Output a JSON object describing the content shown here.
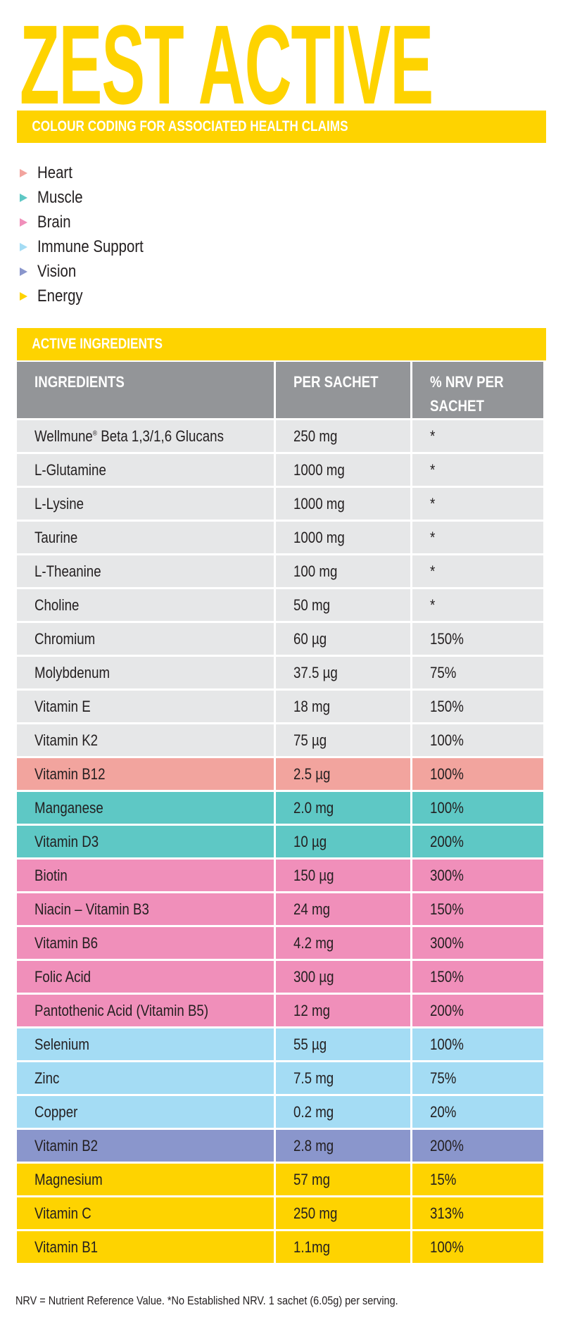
{
  "title": "ZEST ACTIVE",
  "colour_section": {
    "heading": "COLOUR CODING FOR ASSOCIATED HEALTH CLAIMS",
    "items": [
      {
        "label": "Heart",
        "color": "#f2a49e"
      },
      {
        "label": "Muscle",
        "color": "#5ec8c5"
      },
      {
        "label": "Brain",
        "color": "#f08fba"
      },
      {
        "label": "Immune Support",
        "color": "#a4dcf4"
      },
      {
        "label": "Vision",
        "color": "#8a96cc"
      },
      {
        "label": "Energy",
        "color": "#fed300"
      }
    ]
  },
  "ingredients_section": {
    "heading": "ACTIVE INGREDIENTS",
    "columns": [
      "INGREDIENTS",
      "PER SACHET",
      "% NRV PER SACHET"
    ],
    "rows": [
      {
        "name": "Wellmune",
        "sup": "®",
        "name_rest": " Beta 1,3/1,6 Glucans",
        "amount": "250 mg",
        "nrv": "*",
        "color": "#e6e7e8"
      },
      {
        "name": "L-Glutamine",
        "amount": "1000 mg",
        "nrv": "*",
        "color": "#e6e7e8"
      },
      {
        "name": "L-Lysine",
        "amount": "1000 mg",
        "nrv": "*",
        "color": "#e6e7e8"
      },
      {
        "name": "Taurine",
        "amount": "1000 mg",
        "nrv": "*",
        "color": "#e6e7e8"
      },
      {
        "name": "L-Theanine",
        "amount": "100 mg",
        "nrv": "*",
        "color": "#e6e7e8"
      },
      {
        "name": "Choline",
        "amount": "50 mg",
        "nrv": "*",
        "color": "#e6e7e8"
      },
      {
        "name": "Chromium",
        "amount": "60 µg",
        "nrv": "150%",
        "color": "#e6e7e8"
      },
      {
        "name": "Molybdenum",
        "amount": "37.5 µg",
        "nrv": "75%",
        "color": "#e6e7e8"
      },
      {
        "name": "Vitamin E",
        "amount": "18 mg",
        "nrv": "150%",
        "color": "#e6e7e8"
      },
      {
        "name": "Vitamin K2",
        "amount": "75 µg",
        "nrv": "100%",
        "color": "#e6e7e8"
      },
      {
        "name": "Vitamin B12",
        "amount": "2.5 µg",
        "nrv": "100%",
        "color": "#f2a49e"
      },
      {
        "name": "Manganese",
        "amount": "2.0 mg",
        "nrv": "100%",
        "color": "#5ec8c5"
      },
      {
        "name": "Vitamin D3",
        "amount": "10 µg",
        "nrv": "200%",
        "color": "#5ec8c5"
      },
      {
        "name": "Biotin",
        "amount": "150 µg",
        "nrv": "300%",
        "color": "#f08fba"
      },
      {
        "name": "Niacin – Vitamin B3",
        "amount": "24 mg",
        "nrv": "150%",
        "color": "#f08fba"
      },
      {
        "name": "Vitamin B6",
        "amount": "4.2 mg",
        "nrv": "300%",
        "color": "#f08fba"
      },
      {
        "name": "Folic Acid",
        "amount": "300 µg",
        "nrv": "150%",
        "color": "#f08fba"
      },
      {
        "name": "Pantothenic Acid (Vitamin B5)",
        "amount": "12 mg",
        "nrv": "200%",
        "color": "#f08fba"
      },
      {
        "name": "Selenium",
        "amount": "55 µg",
        "nrv": "100%",
        "color": "#a4dcf4"
      },
      {
        "name": "Zinc",
        "amount": "7.5 mg",
        "nrv": "75%",
        "color": "#a4dcf4"
      },
      {
        "name": "Copper",
        "amount": "0.2 mg",
        "nrv": "20%",
        "color": "#a4dcf4"
      },
      {
        "name": "Vitamin B2",
        "amount": "2.8 mg",
        "nrv": "200%",
        "color": "#8a96cc"
      },
      {
        "name": "Magnesium",
        "amount": "57 mg",
        "nrv": "15%",
        "color": "#fed300"
      },
      {
        "name": "Vitamin C",
        "amount": "250 mg",
        "nrv": "313%",
        "color": "#fed300"
      },
      {
        "name": "Vitamin B1",
        "amount": "1.1mg",
        "nrv": "100%",
        "color": "#fed300"
      }
    ]
  },
  "footer": "NRV = Nutrient Reference Value. *No Established NRV. 1 sachet (6.05g) per serving."
}
